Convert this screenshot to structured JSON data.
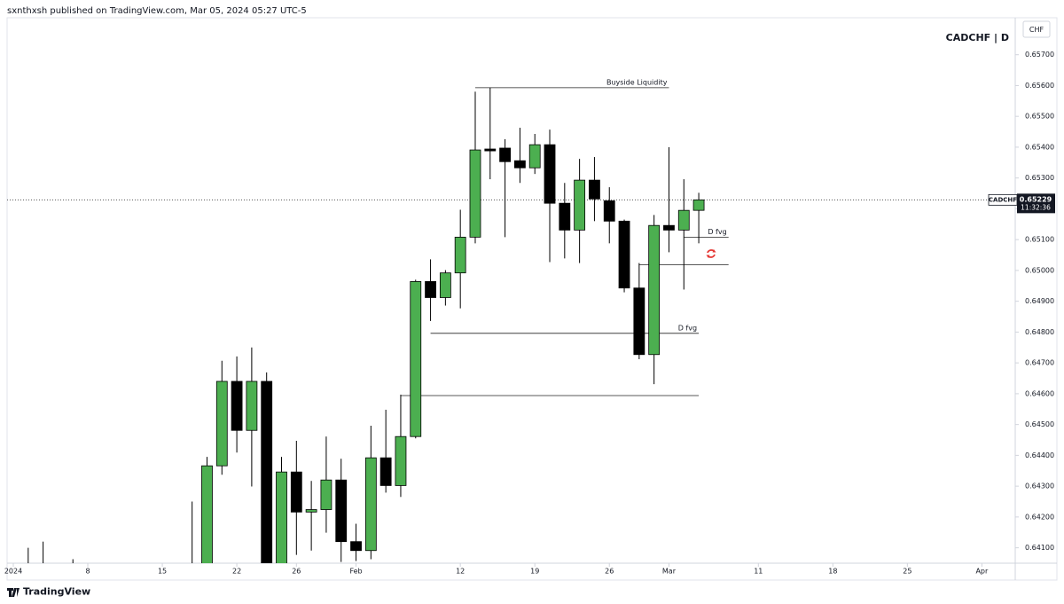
{
  "header": "sxnthxsh published on TradingView.com, Mar 05, 2024 05:27 UTC-5",
  "footer": "TradingView",
  "chart_data": {
    "type": "candlestick",
    "title": "CADCHF | D",
    "currency": "CHF",
    "symbol_label": "CADCHF",
    "last_price": 0.65229,
    "countdown": "11:32:36",
    "up_color": "#4caf50",
    "down_color": "#000000",
    "x": [
      "2024-01-02",
      "2024-01-03",
      "2024-01-05",
      "2024-01-17",
      "2024-01-18",
      "2024-01-19",
      "2024-01-22",
      "2024-01-23",
      "2024-01-24",
      "2024-01-25",
      "2024-01-26",
      "2024-01-29",
      "2024-01-30",
      "2024-01-31",
      "2024-02-01",
      "2024-02-02",
      "2024-02-05",
      "2024-02-06",
      "2024-02-07",
      "2024-02-08",
      "2024-02-09",
      "2024-02-12",
      "2024-02-13",
      "2024-02-14",
      "2024-02-15",
      "2024-02-16",
      "2024-02-19",
      "2024-02-20",
      "2024-02-21",
      "2024-02-22",
      "2024-02-23",
      "2024-02-26",
      "2024-02-27",
      "2024-02-28",
      "2024-02-29",
      "2024-03-01",
      "2024-03-04",
      "2024-03-05"
    ],
    "open": [
      0.64,
      0.6398,
      0.6396,
      0.64,
      0.6401,
      0.64366,
      0.6464,
      0.64481,
      0.6464,
      0.6402,
      0.64346,
      0.64216,
      0.64224,
      0.6432,
      0.6412,
      0.64091,
      0.64392,
      0.64302,
      0.64461,
      0.64964,
      0.64912,
      0.64992,
      0.65108,
      0.65394,
      0.65397,
      0.65356,
      0.65333,
      0.65408,
      0.65218,
      0.65131,
      0.65293,
      0.65226,
      0.6516,
      0.64943,
      0.64727,
      0.65146,
      0.65131,
      0.65195
    ],
    "high": [
      0.641,
      0.6412,
      0.64063,
      0.6425,
      0.64395,
      0.64707,
      0.64721,
      0.6475,
      0.64669,
      0.64395,
      0.64447,
      0.64317,
      0.64461,
      0.64389,
      0.64178,
      0.64496,
      0.64548,
      0.64597,
      0.6497,
      0.65036,
      0.65001,
      0.65197,
      0.6558,
      0.65593,
      0.65426,
      0.65463,
      0.65443,
      0.65457,
      0.65284,
      0.65362,
      0.65368,
      0.6527,
      0.65165,
      0.65024,
      0.6518,
      0.654,
      0.65296,
      0.65252
    ],
    "low": [
      0.639,
      0.6388,
      0.6387,
      0.6385,
      0.6396,
      0.64337,
      0.64409,
      0.64299,
      0.6395,
      0.6398,
      0.64077,
      0.64091,
      0.64149,
      0.64054,
      0.64057,
      0.64063,
      0.64279,
      0.64265,
      0.64455,
      0.64836,
      0.64886,
      0.64877,
      0.65088,
      0.65296,
      0.65108,
      0.65284,
      0.65313,
      0.65027,
      0.65039,
      0.65024,
      0.6516,
      0.65088,
      0.64929,
      0.64712,
      0.64631,
      0.65059,
      0.64938,
      0.65088
    ],
    "close": [
      0.6398,
      0.6395,
      0.6392,
      0.6395,
      0.64366,
      0.6464,
      0.64481,
      0.6464,
      0.64,
      0.64346,
      0.64216,
      0.64224,
      0.6432,
      0.6412,
      0.64091,
      0.64392,
      0.64302,
      0.64461,
      0.64964,
      0.64912,
      0.64992,
      0.65108,
      0.65391,
      0.65388,
      0.65353,
      0.65333,
      0.65408,
      0.65218,
      0.65131,
      0.65293,
      0.65232,
      0.6516,
      0.64943,
      0.64727,
      0.65146,
      0.65131,
      0.65195,
      0.65229
    ],
    "xlim": [
      "2024-01-01",
      "2024-04-03"
    ],
    "xticks": [
      {
        "value": "2024-01-01",
        "label": "2024"
      },
      {
        "value": "2024-01-08",
        "label": "8"
      },
      {
        "value": "2024-01-15",
        "label": "15"
      },
      {
        "value": "2024-01-22",
        "label": "22"
      },
      {
        "value": "2024-01-26",
        "label": "26"
      },
      {
        "value": "2024-02-01",
        "label": "Feb"
      },
      {
        "value": "2024-02-12",
        "label": "12"
      },
      {
        "value": "2024-02-19",
        "label": "19"
      },
      {
        "value": "2024-02-26",
        "label": "26"
      },
      {
        "value": "2024-03-01",
        "label": "Mar"
      },
      {
        "value": "2024-03-11",
        "label": "11"
      },
      {
        "value": "2024-03-18",
        "label": "18"
      },
      {
        "value": "2024-03-25",
        "label": "25"
      },
      {
        "value": "2024-04-01",
        "label": "Apr"
      }
    ],
    "ylim": [
      0.6405,
      0.6582
    ],
    "yticks": [
      {
        "value": 0.641,
        "label": "0.64100"
      },
      {
        "value": 0.642,
        "label": "0.64200"
      },
      {
        "value": 0.643,
        "label": "0.64300"
      },
      {
        "value": 0.644,
        "label": "0.64400"
      },
      {
        "value": 0.645,
        "label": "0.64500"
      },
      {
        "value": 0.646,
        "label": "0.64600"
      },
      {
        "value": 0.647,
        "label": "0.64700"
      },
      {
        "value": 0.648,
        "label": "0.64800"
      },
      {
        "value": 0.649,
        "label": "0.64900"
      },
      {
        "value": 0.65,
        "label": "0.65000"
      },
      {
        "value": 0.651,
        "label": "0.65100"
      },
      {
        "value": 0.652,
        "label": "0.65200"
      },
      {
        "value": 0.653,
        "label": "0.65300"
      },
      {
        "value": 0.654,
        "label": "0.65400"
      },
      {
        "value": 0.655,
        "label": "0.65500"
      },
      {
        "value": 0.656,
        "label": "0.65600"
      },
      {
        "value": 0.657,
        "label": "0.65700"
      }
    ],
    "annotations": [
      {
        "label": "Buyside Liquidity",
        "value": 0.65593,
        "start": "2024-02-13",
        "end": "2024-03-01"
      },
      {
        "label": "D fvg",
        "value": 0.65108,
        "start": "2024-03-04",
        "end": "2024-03-07"
      },
      {
        "value": 0.65018,
        "start": "2024-02-28",
        "end": "2024-03-07"
      },
      {
        "label": "D fvg",
        "value": 0.64796,
        "start": "2024-02-08",
        "end": "2024-03-05"
      },
      {
        "value": 0.64594,
        "start": "2024-02-06",
        "end": "2024-03-05"
      }
    ]
  }
}
